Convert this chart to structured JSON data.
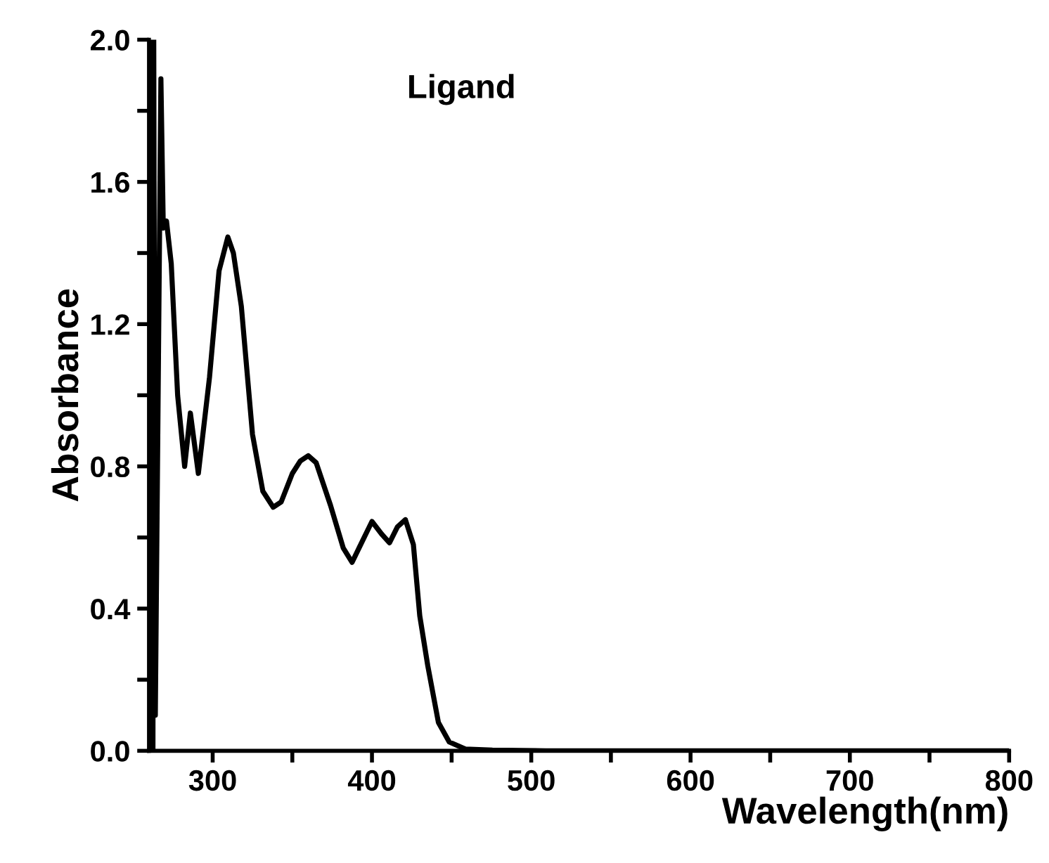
{
  "chart_data": {
    "type": "line",
    "xlabel": "Wavelength(nm)",
    "ylabel": "Absorbance",
    "annotations": [
      "Ligand"
    ],
    "x": [
      261,
      261.5,
      262.5,
      263,
      264,
      267.5,
      269,
      271,
      274,
      278,
      282.4,
      286,
      291,
      298,
      304,
      309.5,
      313,
      318,
      325,
      331.5,
      338,
      343,
      350,
      355,
      360,
      365,
      374,
      382,
      387.5,
      394,
      400,
      406,
      411,
      416,
      421,
      426,
      430,
      435,
      441.7,
      448.5,
      458.6,
      475.6,
      509,
      600,
      700,
      800
    ],
    "series": [
      {
        "color": "#000000",
        "values": [
          0.0,
          2.0,
          0.0,
          2.0,
          0.1,
          1.89,
          1.47,
          1.49,
          1.37,
          1.0,
          0.8,
          0.95,
          0.78,
          1.05,
          1.35,
          1.445,
          1.4,
          1.25,
          0.89,
          0.73,
          0.685,
          0.7,
          0.78,
          0.815,
          0.83,
          0.81,
          0.69,
          0.57,
          0.53,
          0.59,
          0.645,
          0.61,
          0.585,
          0.63,
          0.65,
          0.58,
          0.38,
          0.24,
          0.08,
          0.025,
          0.005,
          0.002,
          0.0,
          0.0,
          0.0,
          0.0
        ]
      }
    ],
    "xlim": [
      260,
      800
    ],
    "ylim": [
      0,
      2.0
    ],
    "xticks": [
      300,
      {
        "value": 350,
        "label": null
      },
      400,
      {
        "value": 450,
        "label": null
      },
      500,
      {
        "value": 550,
        "label": null
      },
      600,
      {
        "value": 650,
        "label": null
      },
      700,
      {
        "value": 750,
        "label": null
      },
      800
    ],
    "yticks": [
      {
        "value": 0,
        "label": "0.0"
      },
      {
        "value": 0.2,
        "label": null
      },
      0.4,
      {
        "value": 0.6,
        "label": null
      },
      0.8,
      {
        "value": 1.0,
        "label": null
      },
      1.2,
      {
        "value": 1.4,
        "label": null
      },
      1.6,
      {
        "value": 1.8,
        "label": null
      },
      {
        "value": 2.0,
        "label": "2.0"
      }
    ],
    "grid": false,
    "legend": false,
    "marker": "none",
    "line_style": "solid"
  }
}
